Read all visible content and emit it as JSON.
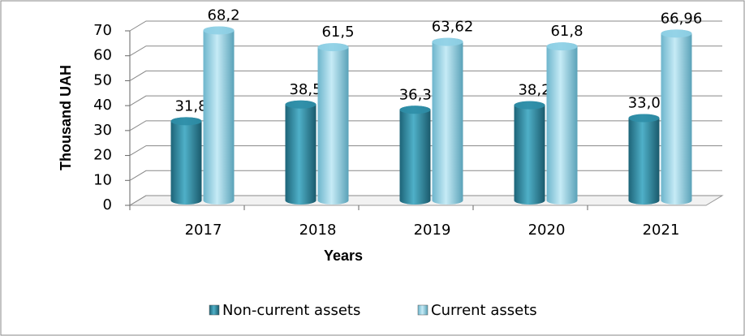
{
  "chart_data": {
    "type": "bar",
    "y_label": "Thousand UAH",
    "x_label": "Years",
    "categories": [
      "2017",
      "2018",
      "2019",
      "2020",
      "2021"
    ],
    "series": [
      {
        "name": "Non-current assets",
        "color": "#2f8ea7",
        "values": [
          31.8,
          38.5,
          36.38,
          38.2,
          33.04
        ],
        "value_labels": [
          "31,8",
          "38,5",
          "36,38",
          "38,2",
          "33,04"
        ]
      },
      {
        "name": "Current assets",
        "color": "#8fd0e6",
        "values": [
          68.2,
          61.5,
          63.62,
          61.8,
          66.96
        ],
        "value_labels": [
          "68,2",
          "61,5",
          "63,62",
          "61,8",
          "66,96"
        ]
      }
    ],
    "ylim": [
      0,
      70
    ],
    "yticks": [
      0,
      10,
      20,
      30,
      40,
      50,
      60,
      70
    ],
    "grid": true,
    "legend": "bottom"
  }
}
